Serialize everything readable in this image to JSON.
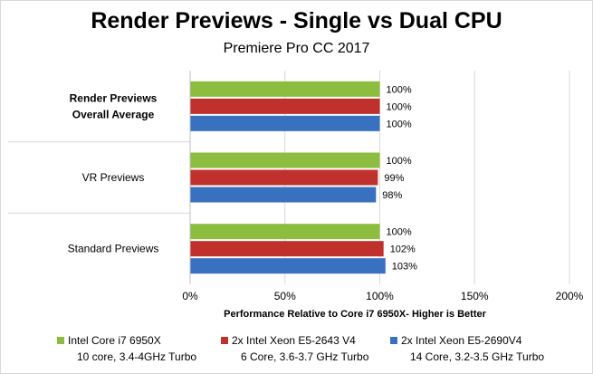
{
  "chart_data": {
    "type": "bar",
    "orientation": "horizontal",
    "title": "Render Previews - Single vs Dual CPU",
    "subtitle": "Premiere Pro CC 2017",
    "xlabel": "Performance Relative to Core i7 6950X- Higher is Better",
    "ylabel": "",
    "xlim": [
      0,
      200
    ],
    "xticks": [
      "0%",
      "50%",
      "100%",
      "150%",
      "200%"
    ],
    "grid": "vertical",
    "legend_position": "bottom",
    "categories": [
      {
        "label_lines": [
          "Render Previews",
          "Overall Average"
        ],
        "bold": true
      },
      {
        "label_lines": [
          "VR Previews"
        ],
        "bold": false
      },
      {
        "label_lines": [
          "Standard Previews"
        ],
        "bold": false
      }
    ],
    "series": [
      {
        "name": "Intel Core i7 6950X",
        "detail": "10 core, 3.4-4GHz Turbo",
        "color": "#8cbd3f",
        "values": [
          100,
          100,
          100
        ],
        "labels": [
          "100%",
          "100%",
          "100%"
        ]
      },
      {
        "name": "2x Intel Xeon E5-2643 V4",
        "detail": "6 Core, 3.6-3.7 GHz Turbo",
        "color": "#c0312e",
        "values": [
          100,
          99,
          102
        ],
        "labels": [
          "100%",
          "99%",
          "102%"
        ]
      },
      {
        "name": "2x Intel Xeon E5-2690V4",
        "detail": "14 Core, 3.2-3.5 GHz Turbo",
        "color": "#3a70c0",
        "values": [
          100,
          98,
          103
        ],
        "labels": [
          "100%",
          "98%",
          "103%"
        ]
      }
    ]
  }
}
